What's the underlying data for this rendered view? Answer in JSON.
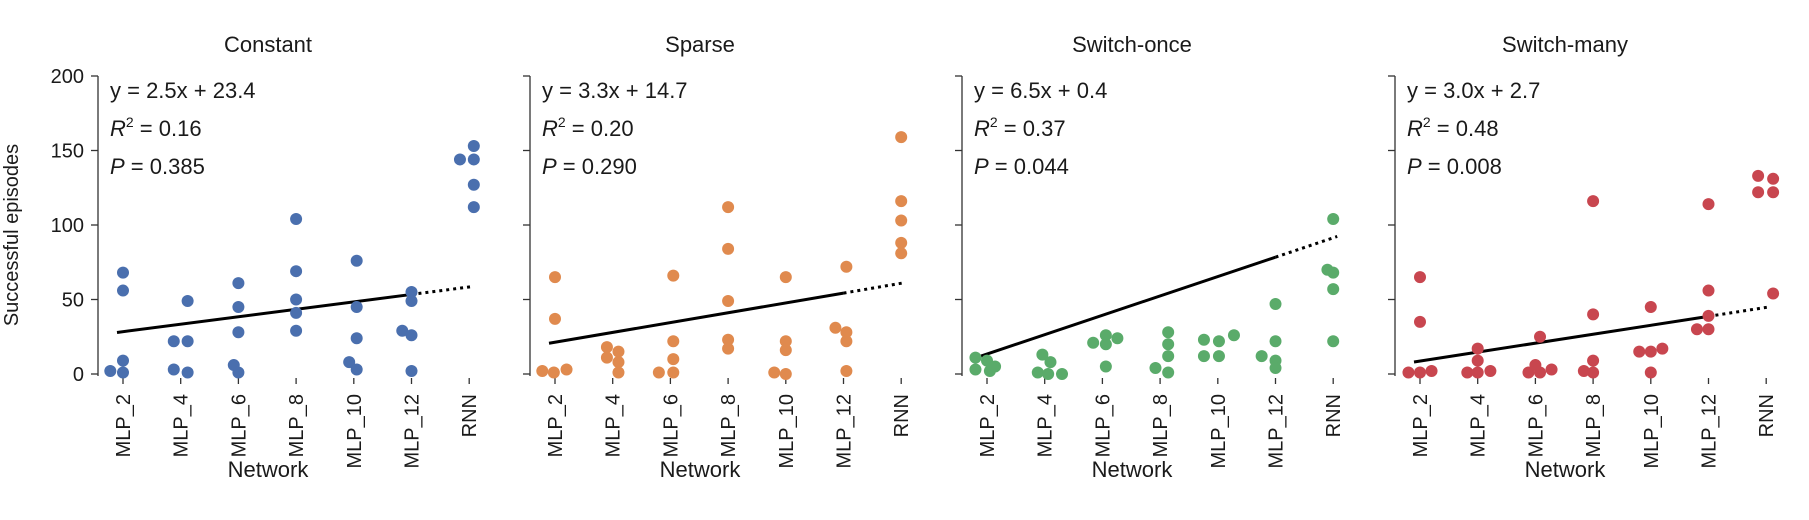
{
  "chart_data": {
    "type": "scatter",
    "ylabel": "Successful episodes",
    "xlabel": "Network",
    "ylim": [
      0,
      200
    ],
    "yticks": [
      0,
      50,
      100,
      150,
      200
    ],
    "categories": [
      "MLP_2",
      "MLP_4",
      "MLP_6",
      "MLP_8",
      "MLP_10",
      "MLP_12",
      "RNN"
    ],
    "panels": [
      {
        "title": "Constant",
        "color": "#4a6fae",
        "annotation": {
          "equation": "y = 2.5x + 23.4",
          "r2": "R2 = 0.16",
          "p": "P = 0.385"
        },
        "fit": {
          "slope": 2.5,
          "intercept": 23.4
        },
        "points": [
          {
            "category": "MLP_2",
            "offset": -0.22,
            "value": 2
          },
          {
            "category": "MLP_2",
            "offset": 0.0,
            "value": 68
          },
          {
            "category": "MLP_2",
            "offset": 0.0,
            "value": 56
          },
          {
            "category": "MLP_2",
            "offset": 0.0,
            "value": 9
          },
          {
            "category": "MLP_2",
            "offset": 0.0,
            "value": 1
          },
          {
            "category": "MLP_4",
            "offset": -0.12,
            "value": 22
          },
          {
            "category": "MLP_4",
            "offset": 0.12,
            "value": 22
          },
          {
            "category": "MLP_4",
            "offset": 0.12,
            "value": 49
          },
          {
            "category": "MLP_4",
            "offset": -0.12,
            "value": 3
          },
          {
            "category": "MLP_4",
            "offset": 0.12,
            "value": 1
          },
          {
            "category": "MLP_6",
            "offset": 0.0,
            "value": 61
          },
          {
            "category": "MLP_6",
            "offset": 0.0,
            "value": 45
          },
          {
            "category": "MLP_6",
            "offset": 0.0,
            "value": 28
          },
          {
            "category": "MLP_6",
            "offset": -0.08,
            "value": 6
          },
          {
            "category": "MLP_6",
            "offset": 0.0,
            "value": 1
          },
          {
            "category": "MLP_8",
            "offset": 0.0,
            "value": 104
          },
          {
            "category": "MLP_8",
            "offset": 0.0,
            "value": 69
          },
          {
            "category": "MLP_8",
            "offset": 0.0,
            "value": 50
          },
          {
            "category": "MLP_8",
            "offset": 0.0,
            "value": 41
          },
          {
            "category": "MLP_8",
            "offset": 0.0,
            "value": 29
          },
          {
            "category": "MLP_10",
            "offset": 0.05,
            "value": 76
          },
          {
            "category": "MLP_10",
            "offset": 0.05,
            "value": 45
          },
          {
            "category": "MLP_10",
            "offset": 0.05,
            "value": 24
          },
          {
            "category": "MLP_10",
            "offset": -0.08,
            "value": 8
          },
          {
            "category": "MLP_10",
            "offset": 0.05,
            "value": 3
          },
          {
            "category": "MLP_12",
            "offset": 0.0,
            "value": 55
          },
          {
            "category": "MLP_12",
            "offset": 0.0,
            "value": 49
          },
          {
            "category": "MLP_12",
            "offset": -0.16,
            "value": 29
          },
          {
            "category": "MLP_12",
            "offset": 0.0,
            "value": 26
          },
          {
            "category": "MLP_12",
            "offset": 0.0,
            "value": 2
          },
          {
            "category": "RNN",
            "offset": -0.16,
            "value": 144
          },
          {
            "category": "RNN",
            "offset": 0.08,
            "value": 153
          },
          {
            "category": "RNN",
            "offset": 0.08,
            "value": 144
          },
          {
            "category": "RNN",
            "offset": 0.08,
            "value": 127
          },
          {
            "category": "RNN",
            "offset": 0.08,
            "value": 112
          }
        ]
      },
      {
        "title": "Sparse",
        "color": "#e08a4e",
        "annotation": {
          "equation": "y = 3.3x + 14.7",
          "r2": "R2 = 0.20",
          "p": "P = 0.290"
        },
        "fit": {
          "slope": 3.3,
          "intercept": 14.7
        },
        "points": [
          {
            "category": "MLP_2",
            "offset": -0.22,
            "value": 2
          },
          {
            "category": "MLP_2",
            "offset": -0.02,
            "value": 1
          },
          {
            "category": "MLP_2",
            "offset": 0.2,
            "value": 3
          },
          {
            "category": "MLP_2",
            "offset": 0.0,
            "value": 65
          },
          {
            "category": "MLP_2",
            "offset": 0.0,
            "value": 37
          },
          {
            "category": "MLP_4",
            "offset": -0.1,
            "value": 18
          },
          {
            "category": "MLP_4",
            "offset": 0.1,
            "value": 15
          },
          {
            "category": "MLP_4",
            "offset": -0.1,
            "value": 11
          },
          {
            "category": "MLP_4",
            "offset": 0.1,
            "value": 8
          },
          {
            "category": "MLP_4",
            "offset": 0.1,
            "value": 1
          },
          {
            "category": "MLP_6",
            "offset": -0.2,
            "value": 1
          },
          {
            "category": "MLP_6",
            "offset": 0.05,
            "value": 66
          },
          {
            "category": "MLP_6",
            "offset": 0.05,
            "value": 22
          },
          {
            "category": "MLP_6",
            "offset": 0.05,
            "value": 10
          },
          {
            "category": "MLP_6",
            "offset": 0.05,
            "value": 1
          },
          {
            "category": "MLP_8",
            "offset": 0.0,
            "value": 112
          },
          {
            "category": "MLP_8",
            "offset": 0.0,
            "value": 84
          },
          {
            "category": "MLP_8",
            "offset": 0.0,
            "value": 49
          },
          {
            "category": "MLP_8",
            "offset": 0.0,
            "value": 23
          },
          {
            "category": "MLP_8",
            "offset": 0.0,
            "value": 17
          },
          {
            "category": "MLP_10",
            "offset": -0.2,
            "value": 1
          },
          {
            "category": "MLP_10",
            "offset": 0.0,
            "value": 65
          },
          {
            "category": "MLP_10",
            "offset": 0.0,
            "value": 22
          },
          {
            "category": "MLP_10",
            "offset": 0.0,
            "value": 16
          },
          {
            "category": "MLP_10",
            "offset": 0.0,
            "value": 0
          },
          {
            "category": "MLP_12",
            "offset": 0.05,
            "value": 72
          },
          {
            "category": "MLP_12",
            "offset": -0.14,
            "value": 31
          },
          {
            "category": "MLP_12",
            "offset": 0.05,
            "value": 28
          },
          {
            "category": "MLP_12",
            "offset": 0.05,
            "value": 22
          },
          {
            "category": "MLP_12",
            "offset": 0.05,
            "value": 2
          },
          {
            "category": "RNN",
            "offset": 0.0,
            "value": 159
          },
          {
            "category": "RNN",
            "offset": 0.0,
            "value": 116
          },
          {
            "category": "RNN",
            "offset": 0.0,
            "value": 103
          },
          {
            "category": "RNN",
            "offset": 0.0,
            "value": 88
          },
          {
            "category": "RNN",
            "offset": 0.0,
            "value": 81
          }
        ]
      },
      {
        "title": "Switch-once",
        "color": "#5aab6a",
        "annotation": {
          "equation": "y = 6.5x + 0.4",
          "r2": "R2 = 0.37",
          "p": "P = 0.044"
        },
        "fit": {
          "slope": 6.5,
          "intercept": 0.4
        },
        "points": [
          {
            "category": "MLP_2",
            "offset": -0.2,
            "value": 11
          },
          {
            "category": "MLP_2",
            "offset": 0.0,
            "value": 9
          },
          {
            "category": "MLP_2",
            "offset": 0.14,
            "value": 5
          },
          {
            "category": "MLP_2",
            "offset": -0.2,
            "value": 3
          },
          {
            "category": "MLP_2",
            "offset": 0.05,
            "value": 2
          },
          {
            "category": "MLP_4",
            "offset": -0.04,
            "value": 13
          },
          {
            "category": "MLP_4",
            "offset": 0.1,
            "value": 8
          },
          {
            "category": "MLP_4",
            "offset": -0.12,
            "value": 1
          },
          {
            "category": "MLP_4",
            "offset": 0.06,
            "value": 0
          },
          {
            "category": "MLP_4",
            "offset": 0.3,
            "value": 0
          },
          {
            "category": "MLP_6",
            "offset": -0.16,
            "value": 21
          },
          {
            "category": "MLP_6",
            "offset": 0.06,
            "value": 26
          },
          {
            "category": "MLP_6",
            "offset": 0.06,
            "value": 20
          },
          {
            "category": "MLP_6",
            "offset": 0.26,
            "value": 24
          },
          {
            "category": "MLP_6",
            "offset": 0.06,
            "value": 5
          },
          {
            "category": "MLP_8",
            "offset": 0.14,
            "value": 28
          },
          {
            "category": "MLP_8",
            "offset": 0.14,
            "value": 20
          },
          {
            "category": "MLP_8",
            "offset": 0.14,
            "value": 12
          },
          {
            "category": "MLP_8",
            "offset": -0.08,
            "value": 4
          },
          {
            "category": "MLP_8",
            "offset": 0.14,
            "value": 1
          },
          {
            "category": "MLP_10",
            "offset": -0.24,
            "value": 23
          },
          {
            "category": "MLP_10",
            "offset": 0.02,
            "value": 22
          },
          {
            "category": "MLP_10",
            "offset": 0.28,
            "value": 26
          },
          {
            "category": "MLP_10",
            "offset": -0.24,
            "value": 12
          },
          {
            "category": "MLP_10",
            "offset": 0.02,
            "value": 12
          },
          {
            "category": "MLP_12",
            "offset": 0.0,
            "value": 47
          },
          {
            "category": "MLP_12",
            "offset": 0.0,
            "value": 22
          },
          {
            "category": "MLP_12",
            "offset": -0.24,
            "value": 12
          },
          {
            "category": "MLP_12",
            "offset": 0.0,
            "value": 9
          },
          {
            "category": "MLP_12",
            "offset": 0.0,
            "value": 4
          },
          {
            "category": "RNN",
            "offset": 0.0,
            "value": 104
          },
          {
            "category": "RNN",
            "offset": -0.1,
            "value": 70
          },
          {
            "category": "RNN",
            "offset": 0.0,
            "value": 68
          },
          {
            "category": "RNN",
            "offset": 0.0,
            "value": 57
          },
          {
            "category": "RNN",
            "offset": 0.0,
            "value": 22
          }
        ]
      },
      {
        "title": "Switch-many",
        "color": "#c8464f",
        "annotation": {
          "equation": "y = 3.0x + 2.7",
          "r2": "R2 = 0.48",
          "p": "P = 0.008"
        },
        "fit": {
          "slope": 3.0,
          "intercept": 2.7
        },
        "points": [
          {
            "category": "MLP_2",
            "offset": -0.2,
            "value": 1
          },
          {
            "category": "MLP_2",
            "offset": 0.0,
            "value": 65
          },
          {
            "category": "MLP_2",
            "offset": 0.0,
            "value": 35
          },
          {
            "category": "MLP_2",
            "offset": 0.0,
            "value": 1
          },
          {
            "category": "MLP_2",
            "offset": 0.2,
            "value": 2
          },
          {
            "category": "MLP_4",
            "offset": 0.0,
            "value": 17
          },
          {
            "category": "MLP_4",
            "offset": 0.0,
            "value": 9
          },
          {
            "category": "MLP_4",
            "offset": -0.18,
            "value": 1
          },
          {
            "category": "MLP_4",
            "offset": 0.0,
            "value": 1
          },
          {
            "category": "MLP_4",
            "offset": 0.22,
            "value": 2
          },
          {
            "category": "MLP_6",
            "offset": 0.08,
            "value": 25
          },
          {
            "category": "MLP_6",
            "offset": -0.12,
            "value": 1
          },
          {
            "category": "MLP_6",
            "offset": 0.0,
            "value": 6
          },
          {
            "category": "MLP_6",
            "offset": 0.08,
            "value": 1
          },
          {
            "category": "MLP_6",
            "offset": 0.28,
            "value": 3
          },
          {
            "category": "MLP_8",
            "offset": 0.0,
            "value": 116
          },
          {
            "category": "MLP_8",
            "offset": 0.0,
            "value": 40
          },
          {
            "category": "MLP_8",
            "offset": 0.0,
            "value": 9
          },
          {
            "category": "MLP_8",
            "offset": -0.16,
            "value": 2
          },
          {
            "category": "MLP_8",
            "offset": 0.0,
            "value": 1
          },
          {
            "category": "MLP_10",
            "offset": 0.0,
            "value": 45
          },
          {
            "category": "MLP_10",
            "offset": -0.2,
            "value": 15
          },
          {
            "category": "MLP_10",
            "offset": 0.0,
            "value": 15
          },
          {
            "category": "MLP_10",
            "offset": 0.2,
            "value": 17
          },
          {
            "category": "MLP_10",
            "offset": 0.0,
            "value": 1
          },
          {
            "category": "MLP_12",
            "offset": 0.0,
            "value": 114
          },
          {
            "category": "MLP_12",
            "offset": 0.0,
            "value": 56
          },
          {
            "category": "MLP_12",
            "offset": 0.0,
            "value": 39
          },
          {
            "category": "MLP_12",
            "offset": -0.2,
            "value": 30
          },
          {
            "category": "MLP_12",
            "offset": 0.0,
            "value": 30
          },
          {
            "category": "RNN",
            "offset": -0.14,
            "value": 133
          },
          {
            "category": "RNN",
            "offset": 0.12,
            "value": 131
          },
          {
            "category": "RNN",
            "offset": -0.14,
            "value": 122
          },
          {
            "category": "RNN",
            "offset": 0.12,
            "value": 122
          },
          {
            "category": "RNN",
            "offset": 0.12,
            "value": 54
          }
        ]
      }
    ]
  }
}
